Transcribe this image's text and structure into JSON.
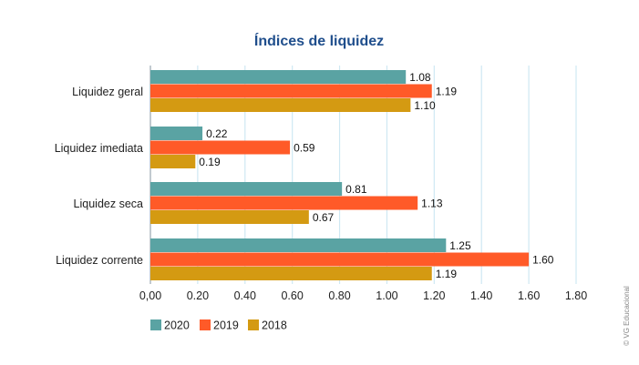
{
  "chart_data": {
    "type": "bar",
    "orientation": "horizontal",
    "title": "Índices de liquidez",
    "categories": [
      "Liquidez geral",
      "Liquidez imediata",
      "Liquidez seca",
      "Liquidez corrente"
    ],
    "series": [
      {
        "name": "2020",
        "color": "#5aa3a3",
        "values": [
          1.08,
          0.22,
          0.81,
          1.25
        ],
        "labels": [
          "1.08",
          "0.22",
          "0.81",
          "1.25"
        ]
      },
      {
        "name": "2019",
        "color": "#ff5a28",
        "values": [
          1.19,
          0.59,
          1.13,
          1.6
        ],
        "labels": [
          "1.19",
          "0.59",
          "1.13",
          "1.60"
        ]
      },
      {
        "name": "2018",
        "color": "#d49a12",
        "values": [
          1.1,
          0.19,
          0.67,
          1.19
        ],
        "labels": [
          "1.10",
          "0.19",
          "0.67",
          "1.19"
        ]
      }
    ],
    "xlim": [
      0,
      1.8
    ],
    "xticks": [
      "0,00",
      "0.20",
      "0.40",
      "0.60",
      "0.80",
      "1.00",
      "1.20",
      "1.40",
      "1.60",
      "1.80"
    ],
    "grid": true,
    "grid_color": "#cfe8f3",
    "legend_position": "bottom-left",
    "credit": "© VG Educacional"
  }
}
